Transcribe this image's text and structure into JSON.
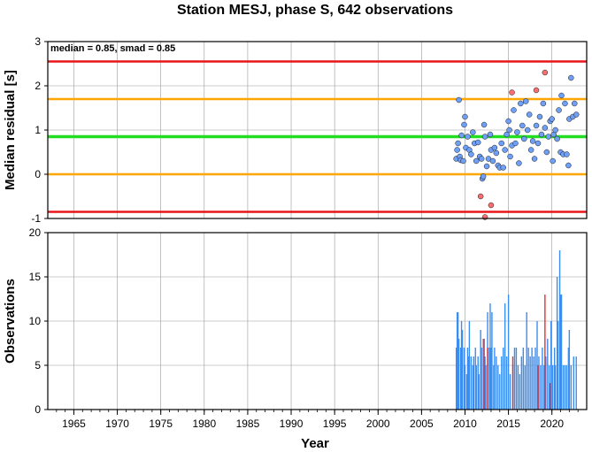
{
  "chart_data": [
    {
      "type": "scatter",
      "title": "Station MESJ, phase S, 642 observations",
      "ylabel": "Median residual [s]",
      "annotation": "median = 0.85, smad = 0.85",
      "xlim": [
        1962,
        2024
      ],
      "ylim": [
        -1,
        3
      ],
      "yticks": [
        -1,
        0,
        1,
        2,
        3
      ],
      "grid": true,
      "reference_lines": [
        {
          "y": 2.55,
          "color": "#e8161b"
        },
        {
          "y": 1.7,
          "color": "#ffa500"
        },
        {
          "y": 0.85,
          "color": "#22dd22"
        },
        {
          "y": 0.0,
          "color": "#ffa500"
        },
        {
          "y": -0.85,
          "color": "#e8161b"
        }
      ],
      "series": [
        {
          "color": "#6fa0f5",
          "points": [
            [
              2009.0,
              0.35
            ],
            [
              2009.1,
              0.55
            ],
            [
              2009.2,
              0.7
            ],
            [
              2009.3,
              1.68
            ],
            [
              2009.4,
              0.4
            ],
            [
              2009.5,
              0.32
            ],
            [
              2009.6,
              0.88
            ],
            [
              2009.8,
              0.3
            ],
            [
              2009.9,
              1.12
            ],
            [
              2010.0,
              1.3
            ],
            [
              2010.1,
              0.6
            ],
            [
              2010.3,
              0.85
            ],
            [
              2010.5,
              0.55
            ],
            [
              2010.7,
              0.45
            ],
            [
              2010.9,
              0.95
            ],
            [
              2011.1,
              0.7
            ],
            [
              2011.3,
              0.3
            ],
            [
              2011.5,
              0.72
            ],
            [
              2011.7,
              0.4
            ],
            [
              2011.9,
              0.35
            ],
            [
              2012.0,
              -0.1
            ],
            [
              2012.1,
              -0.05
            ],
            [
              2012.2,
              1.12
            ],
            [
              2012.3,
              0.85
            ],
            [
              2012.5,
              0.18
            ],
            [
              2012.7,
              0.35
            ],
            [
              2012.9,
              0.9
            ],
            [
              2013.0,
              0.55
            ],
            [
              2013.2,
              0.3
            ],
            [
              2013.4,
              0.6
            ],
            [
              2013.6,
              0.48
            ],
            [
              2013.8,
              0.2
            ],
            [
              2014.0,
              0.15
            ],
            [
              2014.2,
              0.7
            ],
            [
              2014.4,
              0.15
            ],
            [
              2014.6,
              0.55
            ],
            [
              2014.8,
              0.9
            ],
            [
              2015.0,
              1.2
            ],
            [
              2015.1,
              1.0
            ],
            [
              2015.2,
              0.4
            ],
            [
              2015.4,
              0.65
            ],
            [
              2015.6,
              1.45
            ],
            [
              2015.8,
              0.7
            ],
            [
              2016.0,
              0.95
            ],
            [
              2016.2,
              0.25
            ],
            [
              2016.4,
              1.6
            ],
            [
              2016.6,
              1.1
            ],
            [
              2016.8,
              0.8
            ],
            [
              2017.0,
              1.65
            ],
            [
              2017.2,
              1.0
            ],
            [
              2017.4,
              1.35
            ],
            [
              2017.6,
              0.55
            ],
            [
              2017.8,
              0.75
            ],
            [
              2018.0,
              0.35
            ],
            [
              2018.2,
              1.1
            ],
            [
              2018.4,
              0.7
            ],
            [
              2018.6,
              1.3
            ],
            [
              2018.8,
              0.9
            ],
            [
              2019.0,
              1.6
            ],
            [
              2019.2,
              1.05
            ],
            [
              2019.4,
              0.5
            ],
            [
              2019.6,
              0.85
            ],
            [
              2019.8,
              1.2
            ],
            [
              2020.0,
              1.25
            ],
            [
              2020.1,
              0.3
            ],
            [
              2020.2,
              0.9
            ],
            [
              2020.4,
              1.0
            ],
            [
              2020.6,
              0.8
            ],
            [
              2020.8,
              1.45
            ],
            [
              2021.0,
              0.5
            ],
            [
              2021.1,
              1.78
            ],
            [
              2021.3,
              0.45
            ],
            [
              2021.5,
              1.6
            ],
            [
              2021.7,
              0.45
            ],
            [
              2021.9,
              0.2
            ],
            [
              2022.0,
              1.25
            ],
            [
              2022.2,
              2.18
            ],
            [
              2022.4,
              1.3
            ],
            [
              2022.6,
              1.6
            ],
            [
              2022.8,
              1.35
            ]
          ]
        },
        {
          "color": "#f86e6e",
          "points": [
            [
              2011.8,
              -0.5
            ],
            [
              2012.3,
              -0.97
            ],
            [
              2013.0,
              -0.7
            ],
            [
              2015.4,
              1.85
            ],
            [
              2018.2,
              1.9
            ],
            [
              2019.2,
              2.3
            ]
          ]
        }
      ]
    },
    {
      "type": "bar",
      "ylabel": "Observations",
      "xlabel": "Year",
      "xlim": [
        1962,
        2024
      ],
      "ylim": [
        0,
        20
      ],
      "yticks": [
        0,
        5,
        10,
        15,
        20
      ],
      "xticks": [
        1965,
        1970,
        1975,
        1980,
        1985,
        1990,
        1995,
        2000,
        2005,
        2010,
        2015,
        2020
      ],
      "grid": true,
      "series": [
        {
          "color": "#3b8ef0",
          "points": [
            [
              2009.0,
              7
            ],
            [
              2009.1,
              11
            ],
            [
              2009.2,
              11
            ],
            [
              2009.3,
              8
            ],
            [
              2009.5,
              7
            ],
            [
              2009.6,
              10
            ],
            [
              2009.7,
              9
            ],
            [
              2009.9,
              7
            ],
            [
              2010.0,
              5
            ],
            [
              2010.2,
              4
            ],
            [
              2010.3,
              7
            ],
            [
              2010.4,
              6
            ],
            [
              2010.5,
              10
            ],
            [
              2010.7,
              6
            ],
            [
              2010.9,
              5
            ],
            [
              2011.0,
              6
            ],
            [
              2011.2,
              7
            ],
            [
              2011.3,
              5
            ],
            [
              2011.5,
              6
            ],
            [
              2011.6,
              4
            ],
            [
              2011.8,
              9
            ],
            [
              2011.9,
              7
            ],
            [
              2012.1,
              8
            ],
            [
              2012.3,
              6
            ],
            [
              2012.4,
              5
            ],
            [
              2012.6,
              11
            ],
            [
              2012.8,
              7
            ],
            [
              2012.9,
              12
            ],
            [
              2013.0,
              7
            ],
            [
              2013.1,
              11
            ],
            [
              2013.3,
              5
            ],
            [
              2013.4,
              7
            ],
            [
              2013.6,
              6
            ],
            [
              2013.8,
              5
            ],
            [
              2014.0,
              4
            ],
            [
              2014.2,
              6
            ],
            [
              2014.4,
              7
            ],
            [
              2014.6,
              12
            ],
            [
              2014.8,
              6
            ],
            [
              2015.0,
              13
            ],
            [
              2015.2,
              4
            ],
            [
              2015.5,
              5
            ],
            [
              2015.7,
              7
            ],
            [
              2015.9,
              7
            ],
            [
              2016.1,
              5
            ],
            [
              2016.3,
              4
            ],
            [
              2016.5,
              6
            ],
            [
              2016.7,
              7
            ],
            [
              2016.9,
              5
            ],
            [
              2017.1,
              11
            ],
            [
              2017.3,
              7
            ],
            [
              2017.5,
              6
            ],
            [
              2017.7,
              7
            ],
            [
              2017.9,
              6
            ],
            [
              2018.1,
              7
            ],
            [
              2018.3,
              10
            ],
            [
              2018.5,
              6
            ],
            [
              2018.7,
              5
            ],
            [
              2018.9,
              7
            ],
            [
              2019.1,
              5
            ],
            [
              2019.3,
              6
            ],
            [
              2019.5,
              8
            ],
            [
              2019.7,
              5
            ],
            [
              2019.9,
              10
            ],
            [
              2020.1,
              5
            ],
            [
              2020.3,
              7
            ],
            [
              2020.4,
              5
            ],
            [
              2020.6,
              15
            ],
            [
              2020.7,
              10
            ],
            [
              2020.9,
              18
            ],
            [
              2021.0,
              13
            ],
            [
              2021.1,
              13
            ],
            [
              2021.3,
              5
            ],
            [
              2021.5,
              5
            ],
            [
              2021.7,
              5
            ],
            [
              2021.9,
              7
            ],
            [
              2022.0,
              9
            ],
            [
              2022.2,
              5
            ],
            [
              2022.5,
              6
            ],
            [
              2022.8,
              6
            ]
          ]
        },
        {
          "color": "#e83030",
          "points": [
            [
              2012.2,
              8
            ],
            [
              2012.6,
              7
            ],
            [
              2015.5,
              6
            ],
            [
              2018.4,
              5
            ],
            [
              2019.2,
              13
            ],
            [
              2019.8,
              3
            ]
          ]
        }
      ]
    }
  ]
}
